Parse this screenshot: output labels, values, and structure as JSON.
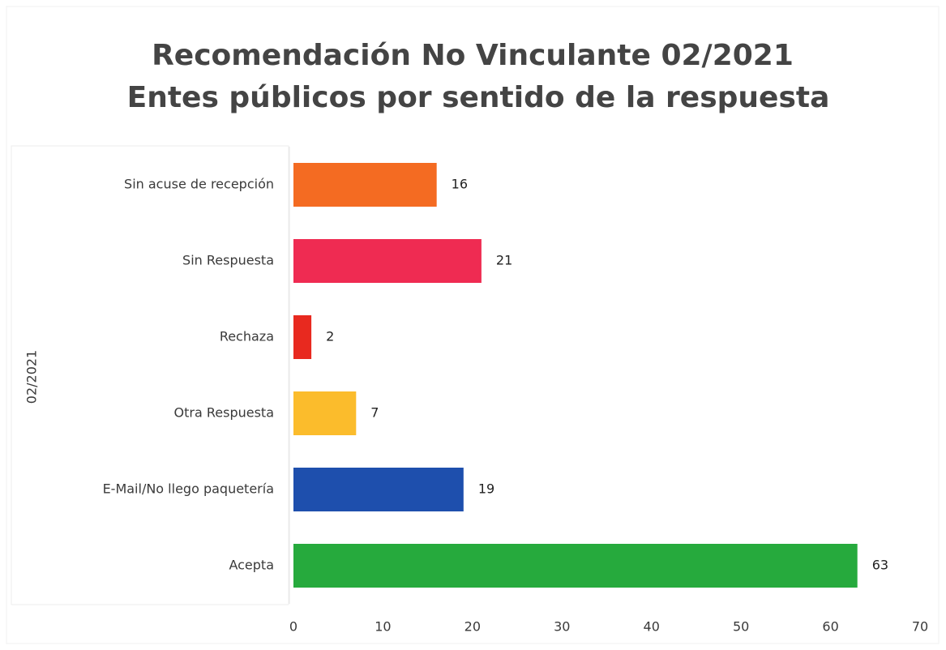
{
  "chart_data": {
    "type": "hbar",
    "title": "Recomendación No Vinculante 02/2021",
    "subtitle": "Entes públicos por sentido de la respuesta",
    "y_label": "02/2021",
    "categories": [
      "Sin acuse de recepción",
      "Sin Respuesta",
      "Rechaza",
      "Otra Respuesta",
      "E-Mail/No llego paquetería",
      "Acepta"
    ],
    "values": [
      16,
      21,
      2,
      7,
      19,
      63
    ],
    "colors": [
      "#f46b22",
      "#ef2b52",
      "#e8291f",
      "#fbbc2c",
      "#1e4fad",
      "#26aa3d"
    ],
    "xlim": [
      0,
      70
    ],
    "xticks": [
      0,
      10,
      20,
      30,
      40,
      50,
      60,
      70
    ],
    "grid": false
  }
}
